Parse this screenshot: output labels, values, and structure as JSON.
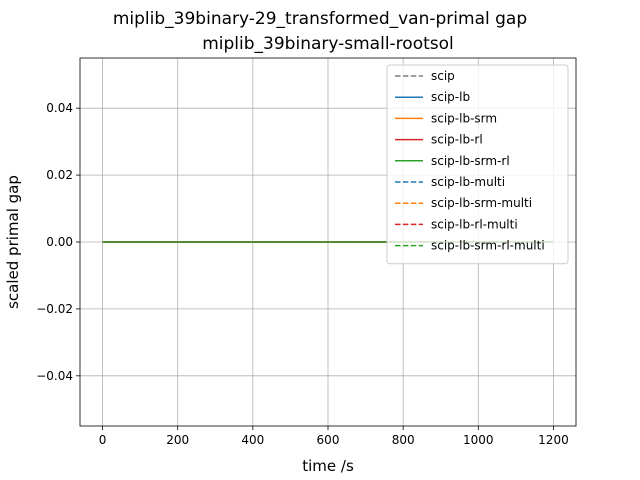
{
  "chart_data": {
    "type": "line",
    "title": "miplib_39binary-29_transformed_van-primal gap",
    "subtitle": "miplib_39binary-small-rootsol",
    "xlabel": "time /s",
    "ylabel": "scaled primal gap",
    "xlim": [
      -60,
      1260
    ],
    "ylim": [
      -0.055,
      0.055
    ],
    "xticks": [
      0,
      200,
      400,
      600,
      800,
      1000,
      1200
    ],
    "xtick_labels": [
      "0",
      "200",
      "400",
      "600",
      "800",
      "1000",
      "1200"
    ],
    "yticks": [
      -0.04,
      -0.02,
      0.0,
      0.02,
      0.04
    ],
    "ytick_labels": [
      "−0.04",
      "−0.02",
      "0.00",
      "0.02",
      "0.04"
    ],
    "grid": true,
    "legend_position": "top-right",
    "series": [
      {
        "name": "scip",
        "color": "#7f7f7f",
        "dash": "dashed",
        "x": [
          0,
          1200
        ],
        "y": [
          0,
          0
        ]
      },
      {
        "name": "scip-lb",
        "color": "#1f77b4",
        "dash": "solid",
        "x": [
          0,
          1200
        ],
        "y": [
          0,
          0
        ]
      },
      {
        "name": "scip-lb-srm",
        "color": "#ff7f0e",
        "dash": "solid",
        "x": [
          0,
          1200
        ],
        "y": [
          0,
          0
        ]
      },
      {
        "name": "scip-lb-rl",
        "color": "#d62728",
        "dash": "solid",
        "x": [
          0,
          1200
        ],
        "y": [
          0,
          0
        ]
      },
      {
        "name": "scip-lb-srm-rl",
        "color": "#2ca02c",
        "dash": "solid",
        "x": [
          0,
          1200
        ],
        "y": [
          0,
          0
        ]
      },
      {
        "name": "scip-lb-multi",
        "color": "#1f77b4",
        "dash": "dashed",
        "x": [
          0,
          1200
        ],
        "y": [
          0,
          0
        ]
      },
      {
        "name": "scip-lb-srm-multi",
        "color": "#ff7f0e",
        "dash": "dashed",
        "x": [
          0,
          1200
        ],
        "y": [
          0,
          0
        ]
      },
      {
        "name": "scip-lb-rl-multi",
        "color": "#d62728",
        "dash": "dashed",
        "x": [
          0,
          1200
        ],
        "y": [
          0,
          0
        ]
      },
      {
        "name": "scip-lb-srm-rl-multi",
        "color": "#2ca02c",
        "dash": "dashed",
        "x": [
          0,
          1200
        ],
        "y": [
          0,
          0
        ]
      }
    ]
  }
}
